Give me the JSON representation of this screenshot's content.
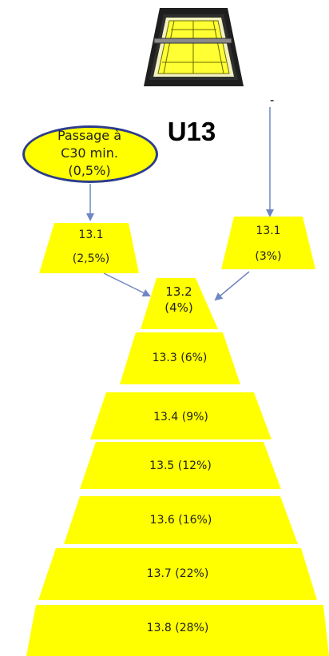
{
  "title": "U13",
  "dash": "-",
  "ellipse": {
    "line1": "Passage à",
    "line2": "C30 min.",
    "line3": "(0,5%)"
  },
  "left_top": {
    "line1": "13.1",
    "line2": "(2,5%)"
  },
  "right_top": {
    "line1": "13.1",
    "line2": "(3%)"
  },
  "apex": {
    "line1": "13.2",
    "line2": "(4%)"
  },
  "levels": [
    "13.3 (6%)",
    "13.4 (9%)",
    "13.5 (12%)",
    "13.6 (16%)",
    "13.7 (22%)",
    "13.8 (28%)"
  ],
  "colors": {
    "fill": "#ffff00",
    "arrow": "#6f86c4",
    "ellipse_border": "#2c3c8c"
  },
  "court_icon": "tennis-court-icon"
}
